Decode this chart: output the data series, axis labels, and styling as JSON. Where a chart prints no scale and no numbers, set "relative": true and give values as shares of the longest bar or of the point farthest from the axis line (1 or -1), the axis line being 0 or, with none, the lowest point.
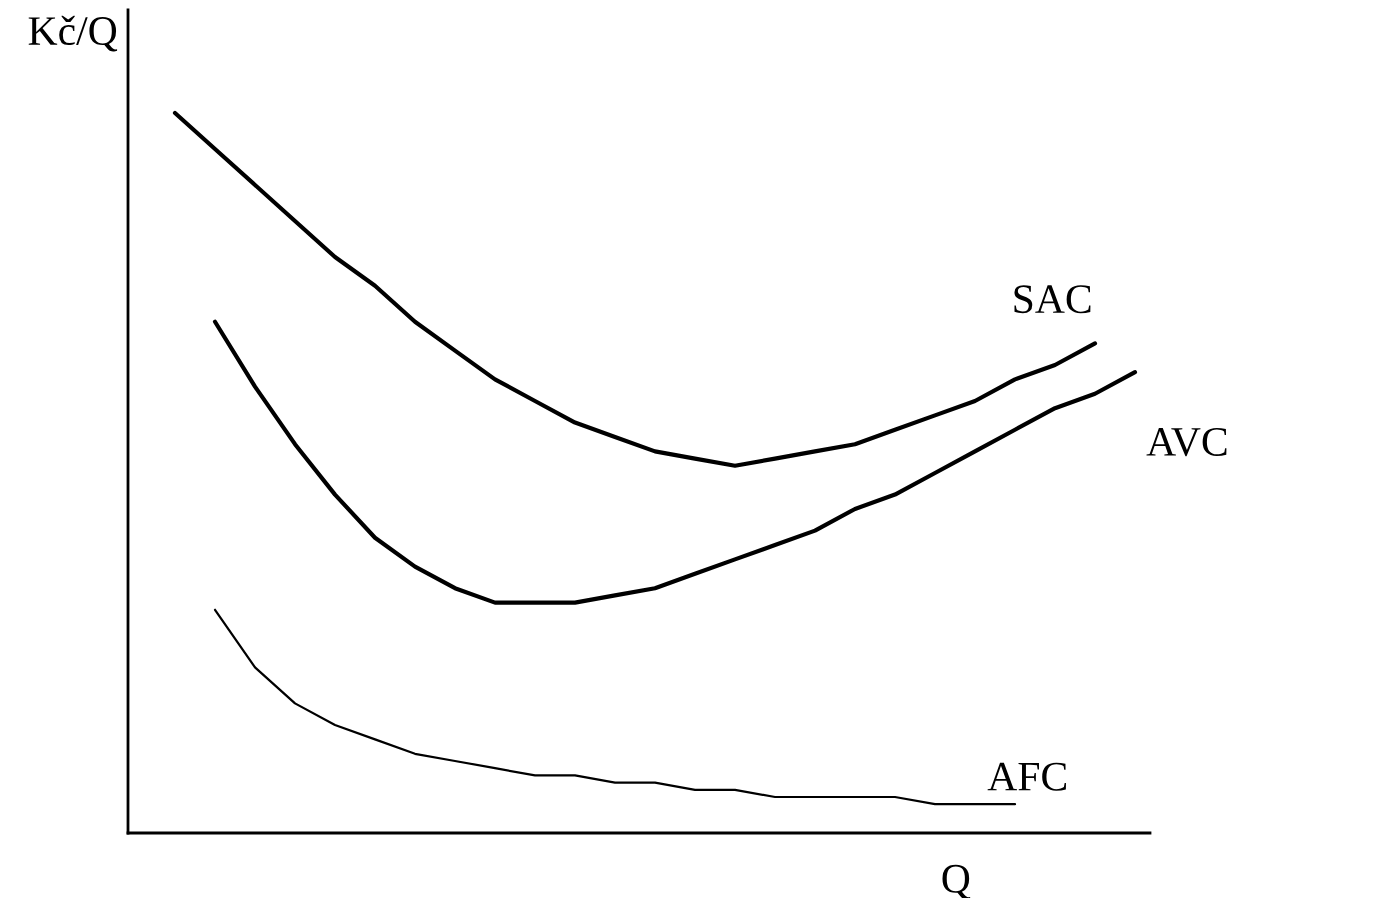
{
  "chart_data": {
    "type": "line",
    "relative": true,
    "ylabel": "Kč/Q",
    "xlabel": "Q",
    "legend": false,
    "marker": "none",
    "line_style": "solid",
    "categories": [
      null,
      null,
      null,
      null,
      null,
      null,
      null,
      null,
      null,
      null,
      null,
      null,
      null,
      null,
      null,
      null,
      null,
      null,
      null,
      null,
      null,
      null,
      null,
      null,
      null
    ],
    "series": [
      {
        "name": "SAC",
        "color": "#000000",
        "values": [
          1.0,
          0.95,
          0.9,
          0.85,
          0.8,
          0.76,
          0.71,
          0.67,
          0.63,
          0.6,
          0.57,
          0.55,
          0.53,
          0.52,
          0.51,
          0.52,
          0.53,
          0.54,
          0.56,
          0.58,
          0.6,
          0.63,
          0.65,
          0.68,
          null
        ]
      },
      {
        "name": "AVC",
        "color": "#000000",
        "values": [
          null,
          0.71,
          0.62,
          0.54,
          0.47,
          0.41,
          0.37,
          0.34,
          0.32,
          0.32,
          0.32,
          0.33,
          0.34,
          0.36,
          0.38,
          0.4,
          0.42,
          0.45,
          0.47,
          0.5,
          0.53,
          0.56,
          0.59,
          0.61,
          0.64
        ]
      },
      {
        "name": "AFC",
        "color": "#000000",
        "values": [
          null,
          0.31,
          0.23,
          0.18,
          0.15,
          0.13,
          0.11,
          0.1,
          0.09,
          0.08,
          0.08,
          0.07,
          0.07,
          0.06,
          0.06,
          0.05,
          0.05,
          0.05,
          0.05,
          0.04,
          0.04,
          0.04,
          null,
          null,
          null
        ]
      }
    ]
  }
}
